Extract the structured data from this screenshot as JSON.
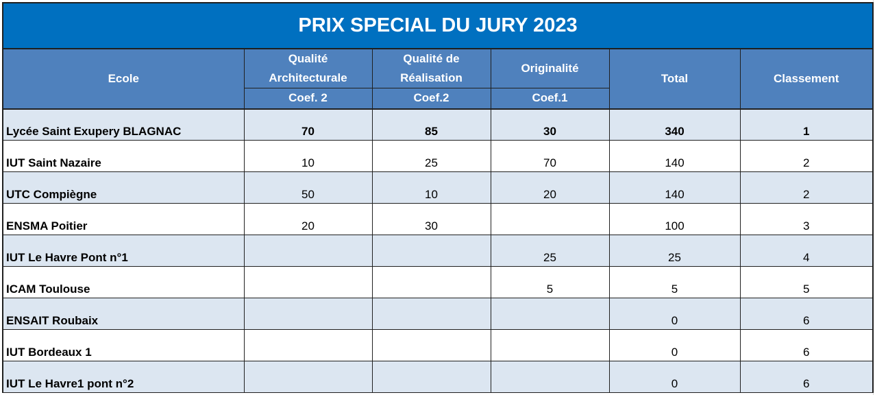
{
  "title": "PRIX SPECIAL DU JURY 2023",
  "headers": {
    "ecole": "Ecole",
    "qualite_archi_line1": "Qualité",
    "qualite_archi_line2": "Architecturale",
    "qualite_real_line1": "Qualité de",
    "qualite_real_line2": "Réalisation",
    "originalite": "Originalité",
    "total": "Total",
    "classement": "Classement",
    "coef_archi": "Coef. 2",
    "coef_real": "Coef.2",
    "coef_orig": "Coef.1"
  },
  "rows": [
    {
      "ecole": "Lycée Saint Exupery BLAGNAC",
      "archi": "70",
      "real": "85",
      "orig": "30",
      "total": "340",
      "rang": "1"
    },
    {
      "ecole": "IUT Saint Nazaire",
      "archi": "10",
      "real": "25",
      "orig": "70",
      "total": "140",
      "rang": "2"
    },
    {
      "ecole": "UTC Compiègne",
      "archi": "50",
      "real": "10",
      "orig": "20",
      "total": "140",
      "rang": "2"
    },
    {
      "ecole": "ENSMA Poitier",
      "archi": "20",
      "real": "30",
      "orig": "",
      "total": "100",
      "rang": "3"
    },
    {
      "ecole": "IUT Le Havre Pont n°1",
      "archi": "",
      "real": "",
      "orig": "25",
      "total": "25",
      "rang": "4"
    },
    {
      "ecole": "ICAM Toulouse",
      "archi": "",
      "real": "",
      "orig": "5",
      "total": "5",
      "rang": "5"
    },
    {
      "ecole": "ENSAIT Roubaix",
      "archi": "",
      "real": "",
      "orig": "",
      "total": "0",
      "rang": "6"
    },
    {
      "ecole": "IUT Bordeaux 1",
      "archi": "",
      "real": "",
      "orig": "",
      "total": "0",
      "rang": "6"
    },
    {
      "ecole": "IUT Le Havre1 pont n°2",
      "archi": "",
      "real": "",
      "orig": "",
      "total": "0",
      "rang": "6"
    }
  ],
  "colors": {
    "title_bg": "#0070c0",
    "header_bg": "#4f81bd",
    "band_bg": "#dce6f1"
  }
}
